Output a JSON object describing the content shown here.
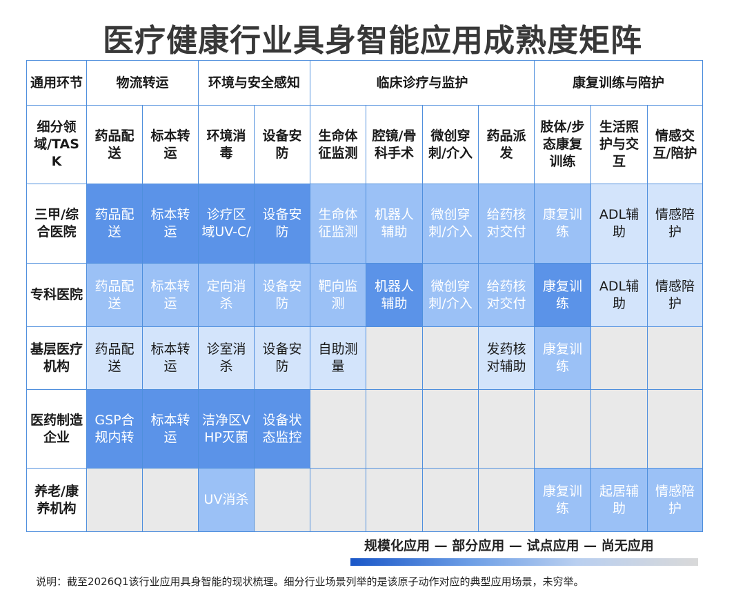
{
  "title": "医疗健康行业具身智能应用成熟度矩阵",
  "legend": {
    "text": "规模化应用 — 部分应用 — 试点应用 — 尚无应用"
  },
  "note": "说明：截至2026Q1该行业应用具身智能的现状梳理。细分行业场景列举的是该原子动作对应的典型应用场景，未穷举。",
  "colors": {
    "full": "#5b93e8",
    "partial": "#9bc1f6",
    "pilot": "#d3e4fb",
    "none": "#e9e9e9",
    "border": "#4f8fdd"
  },
  "chart_data": {
    "type": "table",
    "title": "医疗健康行业具身智能应用成熟度矩阵",
    "levels": [
      "规模化应用",
      "部分应用",
      "试点应用",
      "尚无应用"
    ],
    "header_group_label": "通用环节",
    "header_task_label": "细分领域/TASK",
    "groups": [
      {
        "name": "物流转运",
        "tasks": [
          "药品配送",
          "标本转运"
        ]
      },
      {
        "name": "环境与安全感知",
        "tasks": [
          "环境消毒",
          "设备安防"
        ]
      },
      {
        "name": "临床诊疗与监护",
        "tasks": [
          "生命体征监测",
          "腔镜/骨科手术",
          "微创穿刺/介入",
          "药品派发"
        ]
      },
      {
        "name": "康复训练与陪护",
        "tasks": [
          "肢体/步态康复训练",
          "生活照护与交互",
          "情感交互/陪护"
        ]
      }
    ],
    "rows": [
      {
        "name": "三甲/综合医院",
        "cells": [
          {
            "text": "药品配送",
            "level": "full"
          },
          {
            "text": "标本转运",
            "level": "full"
          },
          {
            "text": "诊疗区域UV-C/",
            "level": "full"
          },
          {
            "text": "设备安防",
            "level": "full"
          },
          {
            "text": "生命体征监测",
            "level": "partial"
          },
          {
            "text": "机器人辅助",
            "level": "partial"
          },
          {
            "text": "微创穿刺/介入",
            "level": "partial"
          },
          {
            "text": "给药核对交付",
            "level": "partial"
          },
          {
            "text": "康复训练",
            "level": "partial"
          },
          {
            "text": "ADL辅助",
            "level": "pilot"
          },
          {
            "text": "情感陪护",
            "level": "pilot"
          }
        ]
      },
      {
        "name": "专科医院",
        "cells": [
          {
            "text": "药品配送",
            "level": "partial"
          },
          {
            "text": "标本转运",
            "level": "partial"
          },
          {
            "text": "定向消杀",
            "level": "partial"
          },
          {
            "text": "设备安防",
            "level": "partial"
          },
          {
            "text": "靶向监测",
            "level": "partial"
          },
          {
            "text": "机器人辅助",
            "level": "full"
          },
          {
            "text": "微创穿刺/介入",
            "level": "partial"
          },
          {
            "text": "给药核对交付",
            "level": "partial"
          },
          {
            "text": "康复训练",
            "level": "full"
          },
          {
            "text": "ADL辅助",
            "level": "pilot"
          },
          {
            "text": "情感陪护",
            "level": "pilot"
          }
        ]
      },
      {
        "name": "基层医疗机构",
        "cells": [
          {
            "text": "药品配送",
            "level": "pilot"
          },
          {
            "text": "标本转运",
            "level": "pilot"
          },
          {
            "text": "诊室消杀",
            "level": "pilot"
          },
          {
            "text": "设备安防",
            "level": "pilot"
          },
          {
            "text": "自助测量",
            "level": "pilot"
          },
          {
            "text": "",
            "level": "none"
          },
          {
            "text": "",
            "level": "none"
          },
          {
            "text": "发药核对辅助",
            "level": "pilot"
          },
          {
            "text": "康复训练",
            "level": "partial"
          },
          {
            "text": "",
            "level": "none"
          },
          {
            "text": "",
            "level": "none"
          }
        ]
      },
      {
        "name": "医药制造企业",
        "cells": [
          {
            "text": "GSP合规内转",
            "level": "full"
          },
          {
            "text": "标本转运",
            "level": "full"
          },
          {
            "text": "洁净区VHP灭菌",
            "level": "full"
          },
          {
            "text": "设备状态监控",
            "level": "full"
          },
          {
            "text": "",
            "level": "none"
          },
          {
            "text": "",
            "level": "none"
          },
          {
            "text": "",
            "level": "none"
          },
          {
            "text": "",
            "level": "none"
          },
          {
            "text": "",
            "level": "none"
          },
          {
            "text": "",
            "level": "none"
          },
          {
            "text": "",
            "level": "none"
          }
        ]
      },
      {
        "name": "养老/康养机构",
        "cells": [
          {
            "text": "",
            "level": "none"
          },
          {
            "text": "",
            "level": "none"
          },
          {
            "text": "UV消杀",
            "level": "partial"
          },
          {
            "text": "",
            "level": "none"
          },
          {
            "text": "",
            "level": "none"
          },
          {
            "text": "",
            "level": "none"
          },
          {
            "text": "",
            "level": "none"
          },
          {
            "text": "",
            "level": "none"
          },
          {
            "text": "康复训练",
            "level": "partial"
          },
          {
            "text": "起居辅助",
            "level": "partial"
          },
          {
            "text": "情感陪护",
            "level": "partial"
          }
        ]
      }
    ]
  }
}
